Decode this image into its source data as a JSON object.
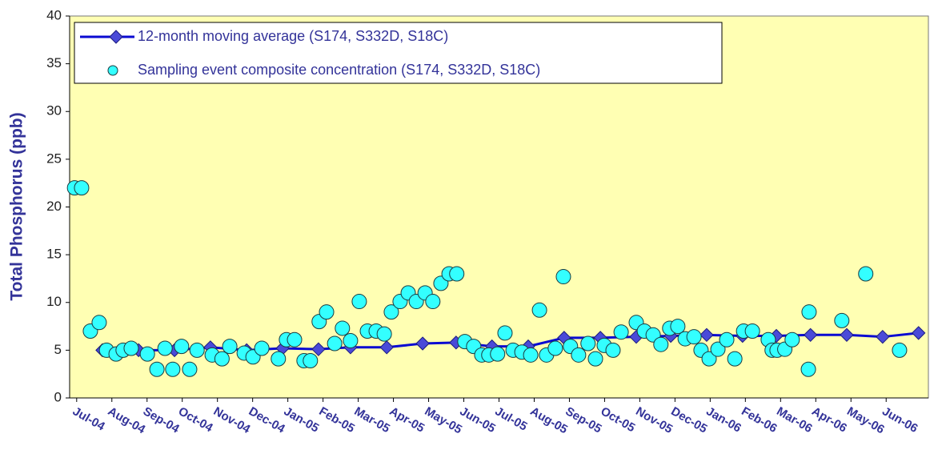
{
  "chart_data": {
    "type": "line-scatter",
    "y_label": "Total Phosphorus (ppb)",
    "xlim": [
      -0.2,
      24.2
    ],
    "xticks": [
      {
        "value": 0,
        "label": "Jul-04"
      },
      {
        "value": 1,
        "label": "Aug-04"
      },
      {
        "value": 2,
        "label": "Sep-04"
      },
      {
        "value": 3,
        "label": "Oct-04"
      },
      {
        "value": 4,
        "label": "Nov-04"
      },
      {
        "value": 5,
        "label": "Dec-04"
      },
      {
        "value": 6,
        "label": "Jan-05"
      },
      {
        "value": 7,
        "label": "Feb-05"
      },
      {
        "value": 8,
        "label": "Mar-05"
      },
      {
        "value": 9,
        "label": "Apr-05"
      },
      {
        "value": 10,
        "label": "May-05"
      },
      {
        "value": 11,
        "label": "Jun-05"
      },
      {
        "value": 12,
        "label": "Jul-05"
      },
      {
        "value": 13,
        "label": "Aug-05"
      },
      {
        "value": 14,
        "label": "Sep-05"
      },
      {
        "value": 15,
        "label": "Oct-05"
      },
      {
        "value": 16,
        "label": "Nov-05"
      },
      {
        "value": 17,
        "label": "Dec-05"
      },
      {
        "value": 18,
        "label": "Jan-06"
      },
      {
        "value": 19,
        "label": "Feb-06"
      },
      {
        "value": 20,
        "label": "Mar-06"
      },
      {
        "value": 21,
        "label": "Apr-06"
      },
      {
        "value": 22,
        "label": "May-06"
      },
      {
        "value": 23,
        "label": "Jun-06"
      }
    ],
    "ylim": [
      0,
      40
    ],
    "yticks": [
      0,
      5,
      10,
      15,
      20,
      25,
      30,
      35,
      40
    ],
    "background": "#ffffb3",
    "series": [
      {
        "name": "12-month moving average (S174, S332D, S18C)",
        "kind": "line",
        "color": "#0a0ad2",
        "marker_color": "#4a4ad8",
        "x": [
          0.73,
          1.76,
          2.78,
          3.8,
          4.83,
          5.85,
          6.87,
          7.78,
          8.81,
          9.83,
          10.78,
          11.8,
          12.83,
          13.85,
          14.88,
          15.9,
          16.88,
          17.9,
          18.92,
          19.88,
          20.85,
          21.88,
          22.9,
          23.92
        ],
        "values": [
          5.0,
          5.0,
          5.0,
          5.3,
          5.0,
          5.2,
          5.1,
          5.3,
          5.3,
          5.7,
          5.8,
          5.4,
          5.4,
          6.3,
          6.3,
          6.4,
          6.5,
          6.6,
          6.5,
          6.5,
          6.6,
          6.6,
          6.4,
          6.8
        ]
      },
      {
        "name": "Sampling event composite concentration (S174, S332D, S18C)",
        "kind": "scatter",
        "color": "#33ffff",
        "x": [
          -0.06,
          0.14,
          0.39,
          0.64,
          0.85,
          1.12,
          1.32,
          1.55,
          2.01,
          2.28,
          2.51,
          2.73,
          2.98,
          3.21,
          3.42,
          3.85,
          4.13,
          4.35,
          4.76,
          5.01,
          5.26,
          5.73,
          5.96,
          6.19,
          6.46,
          6.64,
          6.89,
          7.1,
          7.33,
          7.55,
          7.78,
          8.03,
          8.26,
          8.51,
          8.74,
          8.94,
          9.19,
          9.42,
          9.65,
          9.9,
          10.12,
          10.35,
          10.58,
          10.8,
          11.03,
          11.28,
          11.51,
          11.71,
          11.96,
          12.17,
          12.4,
          12.65,
          12.9,
          13.15,
          13.35,
          13.6,
          13.83,
          14.03,
          14.26,
          14.53,
          14.74,
          14.99,
          15.24,
          15.47,
          15.9,
          16.13,
          16.38,
          16.6,
          16.85,
          17.08,
          17.29,
          17.54,
          17.74,
          17.97,
          18.22,
          18.47,
          18.7,
          18.95,
          19.2,
          19.65,
          19.76,
          19.9,
          20.12,
          20.33,
          20.81,
          20.79,
          21.74,
          22.42,
          23.38
        ],
        "values": [
          22,
          22,
          7,
          7.9,
          5,
          4.6,
          5,
          5.2,
          4.6,
          3,
          5.2,
          3,
          5.4,
          3,
          5,
          4.5,
          4.1,
          5.4,
          4.7,
          4.3,
          5.2,
          4.1,
          6.1,
          6.1,
          3.9,
          3.9,
          8,
          9,
          5.7,
          7.3,
          6,
          10.1,
          7,
          7,
          6.7,
          9,
          10.1,
          11,
          10.1,
          11,
          10.1,
          12,
          13,
          13,
          5.9,
          5.4,
          4.5,
          4.5,
          4.6,
          6.8,
          5,
          4.8,
          4.5,
          9.2,
          4.5,
          5.2,
          12.7,
          5.4,
          4.5,
          5.7,
          4.1,
          5.5,
          5,
          6.9,
          7.9,
          7,
          6.6,
          5.6,
          7.3,
          7.5,
          6.2,
          6.4,
          5,
          4.1,
          5.1,
          6.1,
          4.1,
          7,
          7,
          6.1,
          5,
          5,
          5.1,
          6.1,
          9,
          3,
          8.1,
          13,
          5
        ]
      }
    ]
  }
}
